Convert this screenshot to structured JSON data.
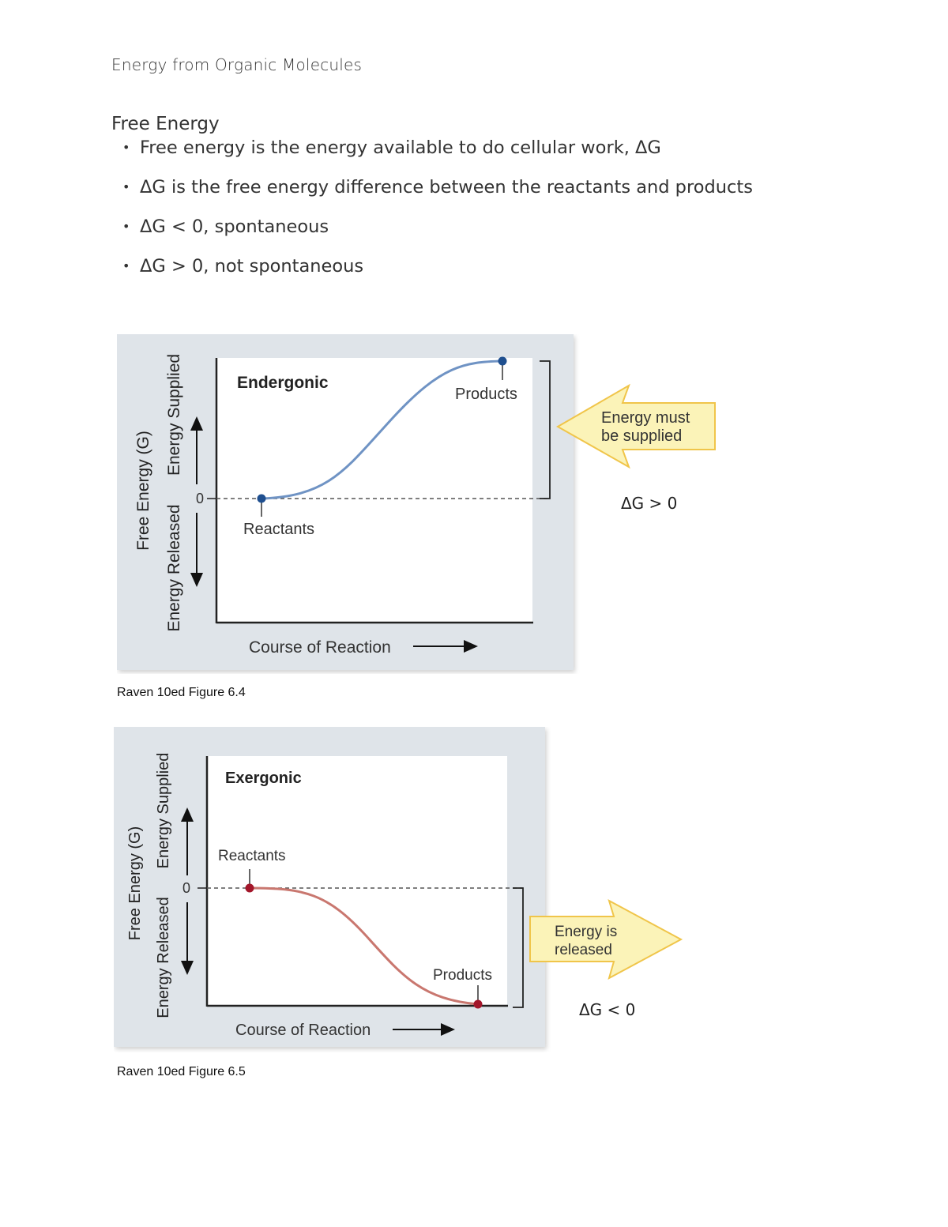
{
  "document": {
    "title": "Energy from Organic Molecules",
    "section_heading": "Free Energy",
    "bullets": [
      "Free energy is the energy available to do cellular work, ΔG",
      "ΔG is the free energy difference between the reactants and products",
      "ΔG < 0, spontaneous",
      "ΔG > 0, not spontaneous"
    ]
  },
  "figure1": {
    "title": "Endergonic",
    "y_axis_label": "Free Energy (G)",
    "y_up_label": "Energy Supplied",
    "y_down_label": "Energy Released",
    "zero_label": "0",
    "x_axis_label": "Course of Reaction",
    "reactants_label": "Reactants",
    "products_label": "Products",
    "arrow_text_line1": "Energy must",
    "arrow_text_line2": "be supplied",
    "delta_g": "ΔG > 0",
    "caption": "Raven 10ed Figure 6.4",
    "curve_color": "#6f93c4",
    "dot_color": "#1f4f8f"
  },
  "figure2": {
    "title": "Exergonic",
    "y_axis_label": "Free Energy (G)",
    "y_up_label": "Energy Supplied",
    "y_down_label": "Energy Released",
    "zero_label": "0",
    "x_axis_label": "Course of Reaction",
    "reactants_label": "Reactants",
    "products_label": "Products",
    "arrow_text_line1": "Energy is",
    "arrow_text_line2": "released",
    "delta_g": "ΔG < 0",
    "caption": "Raven 10ed Figure 6.5",
    "curve_color": "#c9776f",
    "dot_color": "#a3162a"
  },
  "colors": {
    "panel_bg": "#dfe4e9",
    "arrow_fill": "#fbf3b8",
    "arrow_stroke": "#f0c54a"
  }
}
